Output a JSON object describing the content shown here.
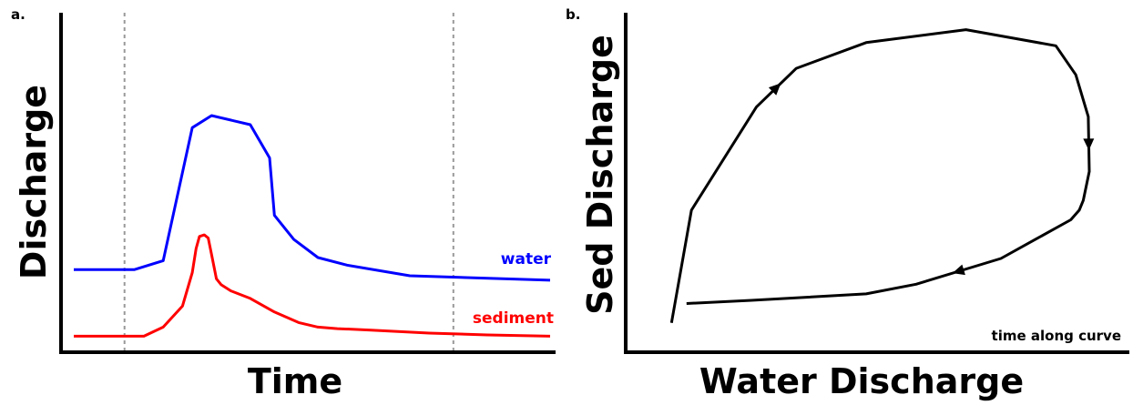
{
  "chart_data": [
    {
      "panel_label": "a.",
      "type": "line",
      "xlabel": "Time",
      "ylabel": "Discharge",
      "ticks_shown": false,
      "xlim": [
        0,
        100
      ],
      "ylim": [
        0,
        100
      ],
      "reference_lines": {
        "style": "dashed",
        "color": "#999999",
        "x": [
          12,
          80
        ]
      },
      "series": [
        {
          "name": "water",
          "color": "#0000ff",
          "points": [
            [
              1.5,
              24
            ],
            [
              14,
              24
            ],
            [
              20,
              27
            ],
            [
              26,
              71
            ],
            [
              30,
              75
            ],
            [
              38,
              72
            ],
            [
              42,
              61
            ],
            [
              43,
              42
            ],
            [
              47,
              34
            ],
            [
              52,
              28
            ],
            [
              58,
              25.5
            ],
            [
              71,
              22
            ],
            [
              100,
              20.5
            ]
          ]
        },
        {
          "name": "sediment",
          "color": "#ff0000",
          "points": [
            [
              1.5,
              2
            ],
            [
              16,
              2
            ],
            [
              20,
              5
            ],
            [
              24,
              12
            ],
            [
              26,
              23
            ],
            [
              26.8,
              31
            ],
            [
              27.5,
              35
            ],
            [
              28.5,
              35.5
            ],
            [
              29.3,
              34.5
            ],
            [
              30,
              29
            ],
            [
              31,
              21
            ],
            [
              32,
              19
            ],
            [
              34,
              17
            ],
            [
              38,
              14.5
            ],
            [
              43,
              10
            ],
            [
              48,
              6.5
            ],
            [
              52,
              5
            ],
            [
              56,
              4.5
            ],
            [
              63,
              4
            ],
            [
              75,
              3
            ],
            [
              87,
              2.4
            ],
            [
              100,
              2
            ]
          ]
        }
      ]
    },
    {
      "panel_label": "b.",
      "type": "line",
      "xlabel": "Water Discharge",
      "ylabel": "Sed Discharge",
      "ticks_shown": false,
      "xlim": [
        0,
        100
      ],
      "ylim": [
        0,
        100
      ],
      "annotation": "time along curve",
      "series": [
        {
          "color": "#000000",
          "direction_arrows": true,
          "points": [
            [
              9,
              6
            ],
            [
              13,
              41
            ],
            [
              26,
              73
            ],
            [
              34,
              85
            ],
            [
              48,
              93
            ],
            [
              68,
              97
            ],
            [
              86,
              92
            ],
            [
              90,
              83
            ],
            [
              92.5,
              70
            ],
            [
              92.7,
              53
            ],
            [
              91.5,
              44
            ],
            [
              90.7,
              41
            ],
            [
              89,
              38
            ],
            [
              82,
              32
            ],
            [
              75,
              26
            ],
            [
              58,
              18
            ],
            [
              48,
              15
            ],
            [
              25,
              13
            ],
            [
              12,
              12
            ]
          ]
        }
      ]
    }
  ]
}
